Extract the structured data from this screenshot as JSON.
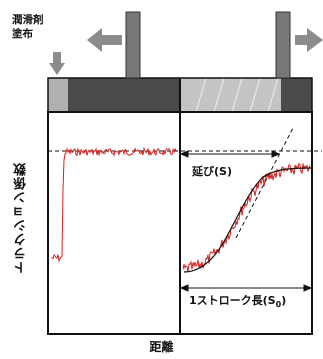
{
  "labels": {
    "lubricant": "潤滑剤\n塗布",
    "y_axis": "トラクション係数",
    "x_axis": "距離",
    "elongation": "延び(S)",
    "stroke_length_prefix": "1ストローク長(S",
    "stroke_length_sub": "0",
    "stroke_length_suffix": ")"
  },
  "colors": {
    "trace": "#d42020",
    "frame": "#111111",
    "roller": "#4a4a4a",
    "arrow": "#8c8c8c",
    "roller_highlight": "#bfbfbf"
  },
  "icons": {
    "left_arrow": "arrow-left-icon",
    "right_arrow": "arrow-right-icon",
    "down_arrow": "arrow-down-icon"
  }
}
